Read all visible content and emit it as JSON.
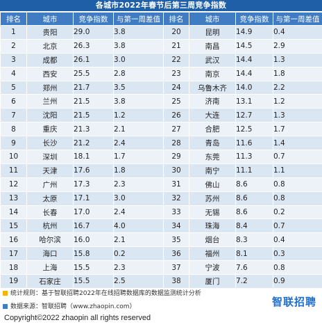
{
  "title": "各城市2022年春节后第三周竞争指数",
  "headers": [
    "排名",
    "城市",
    "竞争指数",
    "与第一周差值",
    "排名",
    "城市",
    "竞争指数",
    "与第一周差值"
  ],
  "left_rows": [
    {
      "rank": "1",
      "city": "贵阳",
      "index": "29.0",
      "diff": "3.8"
    },
    {
      "rank": "2",
      "city": "北京",
      "index": "26.3",
      "diff": "3.8"
    },
    {
      "rank": "3",
      "city": "成都",
      "index": "26.1",
      "diff": "3.0"
    },
    {
      "rank": "4",
      "city": "西安",
      "index": "25.5",
      "diff": "2.8"
    },
    {
      "rank": "5",
      "city": "郑州",
      "index": "21.7",
      "diff": "3.5"
    },
    {
      "rank": "6",
      "city": "兰州",
      "index": "21.5",
      "diff": "3.8"
    },
    {
      "rank": "7",
      "city": "沈阳",
      "index": "21.5",
      "diff": "1.2"
    },
    {
      "rank": "8",
      "city": "重庆",
      "index": "21.3",
      "diff": "2.1"
    },
    {
      "rank": "9",
      "city": "长沙",
      "index": "21.2",
      "diff": "2.4"
    },
    {
      "rank": "10",
      "city": "深圳",
      "index": "18.1",
      "diff": "1.7"
    },
    {
      "rank": "11",
      "city": "天津",
      "index": "17.6",
      "diff": "1.8"
    },
    {
      "rank": "12",
      "city": "广州",
      "index": "17.3",
      "diff": "2.3"
    },
    {
      "rank": "13",
      "city": "太原",
      "index": "17.1",
      "diff": "3.0"
    },
    {
      "rank": "14",
      "city": "长春",
      "index": "17.0",
      "diff": "2.4"
    },
    {
      "rank": "15",
      "city": "杭州",
      "index": "16.7",
      "diff": "4.0"
    },
    {
      "rank": "16",
      "city": "哈尔滨",
      "index": "16.0",
      "diff": "2.1"
    },
    {
      "rank": "17",
      "city": "海口",
      "index": "15.8",
      "diff": "0.2"
    },
    {
      "rank": "18",
      "city": "上海",
      "index": "15.5",
      "diff": "2.3"
    },
    {
      "rank": "19",
      "city": "石家庄",
      "index": "15.5",
      "diff": "2.5"
    }
  ],
  "right_rows": [
    {
      "rank": "20",
      "city": "昆明",
      "index": "14.9",
      "diff": "0.4"
    },
    {
      "rank": "21",
      "city": "南昌",
      "index": "14.5",
      "diff": "2.9"
    },
    {
      "rank": "22",
      "city": "武汉",
      "index": "14.4",
      "diff": "1.3"
    },
    {
      "rank": "23",
      "city": "南京",
      "index": "14.4",
      "diff": "1.8"
    },
    {
      "rank": "24",
      "city": "乌鲁木齐",
      "index": "14.0",
      "diff": "2.2"
    },
    {
      "rank": "25",
      "city": "济南",
      "index": "13.1",
      "diff": "1.2"
    },
    {
      "rank": "26",
      "city": "大连",
      "index": "12.7",
      "diff": "1.3"
    },
    {
      "rank": "27",
      "city": "合肥",
      "index": "12.5",
      "diff": "1.7"
    },
    {
      "rank": "28",
      "city": "青岛",
      "index": "11.6",
      "diff": "1.4"
    },
    {
      "rank": "29",
      "city": "东莞",
      "index": "11.3",
      "diff": "0.7"
    },
    {
      "rank": "30",
      "city": "南宁",
      "index": "11.1",
      "diff": "1.1"
    },
    {
      "rank": "31",
      "city": "佛山",
      "index": "8.6",
      "diff": "0.8"
    },
    {
      "rank": "32",
      "city": "苏州",
      "index": "8.6",
      "diff": "0.8"
    },
    {
      "rank": "33",
      "city": "无锡",
      "index": "8.6",
      "diff": "0.2"
    },
    {
      "rank": "34",
      "city": "珠海",
      "index": "8.4",
      "diff": "0.7"
    },
    {
      "rank": "35",
      "city": "烟台",
      "index": "8.3",
      "diff": "0.4"
    },
    {
      "rank": "36",
      "city": "福州",
      "index": "8.1",
      "diff": "0.3"
    },
    {
      "rank": "37",
      "city": "宁波",
      "index": "7.6",
      "diff": "0.8"
    },
    {
      "rank": "38",
      "city": "厦门",
      "index": "7.2",
      "diff": "0.9"
    }
  ],
  "notes": {
    "method": "统计规则：基于智联招聘2022年在线招聘数据库的数据监测统计分析",
    "source": "数据来源：智联招聘（www.zhaopin.com）"
  },
  "logo_text": "智联招聘",
  "copyright": "Copyright©2022 zhaopin all rights reserved",
  "colors": {
    "title_bg": "#1f5fa8",
    "header_bg": "#3f7cc4",
    "row_odd": "#dbe6f3",
    "row_even": "#edf2f9",
    "logo": "#1f6fd0",
    "note_marker_1": "#f4b400",
    "note_marker_2": "#3f7cc4"
  }
}
